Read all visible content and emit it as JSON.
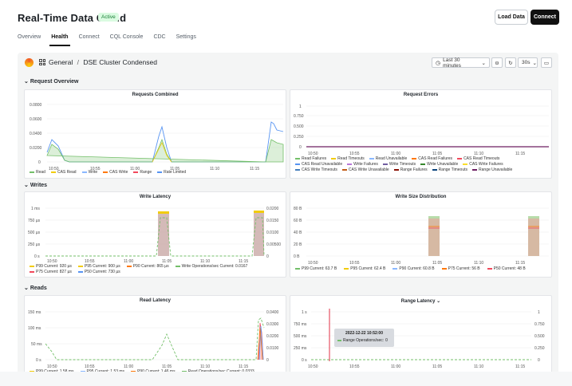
{
  "app": {
    "title": "Real-Time Data Cloud",
    "status": "Active",
    "load_data_label": "Load Data",
    "connect_label": "Connect"
  },
  "tabs": [
    {
      "label": "Overview"
    },
    {
      "label": "Health"
    },
    {
      "label": "Connect"
    },
    {
      "label": "CQL Console"
    },
    {
      "label": "CDC"
    },
    {
      "label": "Settings"
    }
  ],
  "grafana": {
    "breadcrumb_folder": "General",
    "breadcrumb_separator": "/",
    "breadcrumb_dashboard": "DSE Cluster Condensed",
    "time_range": "Last 30 minutes",
    "refresh": "30s",
    "sections": {
      "request_overview": "Request Overview",
      "writes": "Writes",
      "reads": "Reads"
    }
  },
  "icons": {
    "logo": "grafana-logo-icon",
    "dashboards": "grid-icon",
    "clock": "clock-icon",
    "zoom": "zoom-out-icon",
    "refresh": "refresh-icon",
    "tv": "tv-mode-icon"
  },
  "panels": {
    "requests_combined": {
      "title": "Requests Combined",
      "y_ticks": [
        "0.0800",
        "0.0600",
        "0.0400",
        "0.0200",
        "0"
      ],
      "x_ticks": [
        "10:50",
        "10:55",
        "11:00",
        "11:05",
        "11:10",
        "11:15"
      ],
      "legend": [
        {
          "label": "Read",
          "color": "#73bf69"
        },
        {
          "label": "CAS Read",
          "color": "#f2cc0c"
        },
        {
          "label": "Write",
          "color": "#8ab8ff"
        },
        {
          "label": "CAS Write",
          "color": "#ff780a"
        },
        {
          "label": "Range",
          "color": "#f2495c"
        },
        {
          "label": "Rate Limited",
          "color": "#5794f2"
        }
      ]
    },
    "request_errors": {
      "title": "Request Errors",
      "y_ticks": [
        "1",
        "0.750",
        "0.500",
        "0.250",
        "0"
      ],
      "x_ticks": [
        "10:50",
        "10:55",
        "11:00",
        "11:05",
        "11:10",
        "11:15"
      ],
      "legend": [
        {
          "label": "Read Failures",
          "color": "#73bf69"
        },
        {
          "label": "Read Timeouts",
          "color": "#f2cc0c"
        },
        {
          "label": "Read Unavailable",
          "color": "#8ab8ff"
        },
        {
          "label": "CAS Read Failures",
          "color": "#ff780a"
        },
        {
          "label": "CAS Read Timeouts",
          "color": "#f2495c"
        },
        {
          "label": "CAS Read Unavailable",
          "color": "#5794f2"
        },
        {
          "label": "Write Failures",
          "color": "#b877d9"
        },
        {
          "label": "Write Timeouts",
          "color": "#705da0"
        },
        {
          "label": "Write Unavailable",
          "color": "#37872d"
        },
        {
          "label": "CAS Write Failures",
          "color": "#fade2a"
        },
        {
          "label": "CAS Write Timeouts",
          "color": "#447ebc"
        },
        {
          "label": "CAS Write Unavailable",
          "color": "#c15c17"
        },
        {
          "label": "Range Failures",
          "color": "#890f02"
        },
        {
          "label": "Range Timeouts",
          "color": "#0a437c"
        },
        {
          "label": "Range Unavailable",
          "color": "#6d1f62"
        }
      ]
    },
    "write_latency": {
      "title": "Write Latency",
      "y_left_ticks": [
        "1 ms",
        "750 µs",
        "500 µs",
        "250 µs",
        "0 s"
      ],
      "y_right_ticks": [
        "0.0200",
        "0.0150",
        "0.0100",
        "0.00500",
        "0"
      ],
      "x_ticks": [
        "10:50",
        "10:55",
        "11:00",
        "11:05",
        "11:10",
        "11:15"
      ],
      "legend": [
        {
          "label": "P99  Current: 920 µs",
          "color": "#f2cc0c"
        },
        {
          "label": "P95  Current: 900 µs",
          "color": "#f2cc0c"
        },
        {
          "label": "P90  Current: 865 µs",
          "color": "#ff780a"
        },
        {
          "label": "Write Operations/sec  Current: 0.0167",
          "color": "#73bf69"
        },
        {
          "label": "P75  Current: 827 µs",
          "color": "#f2495c"
        },
        {
          "label": "P50  Current: 730 µs",
          "color": "#5794f2"
        }
      ]
    },
    "write_size": {
      "title": "Write Size Distribution",
      "y_ticks": [
        "80 B",
        "60 B",
        "40 B",
        "20 B",
        "0 B"
      ],
      "x_ticks": [
        "10:50",
        "10:55",
        "11:00",
        "11:05",
        "11:10",
        "11:15"
      ],
      "legend": [
        {
          "label": "P99  Current: 63.7 B",
          "color": "#73bf69"
        },
        {
          "label": "P95  Current: 62.4 B",
          "color": "#f2cc0c"
        },
        {
          "label": "P90  Current: 60.8 B",
          "color": "#8ab8ff"
        },
        {
          "label": "P75  Current: 56 B",
          "color": "#ff780a"
        },
        {
          "label": "P50  Current: 48 B",
          "color": "#f2495c"
        }
      ]
    },
    "read_latency": {
      "title": "Read Latency",
      "y_left_ticks": [
        "150 ms",
        "100 ms",
        "50 ms",
        "0 s"
      ],
      "y_right_ticks": [
        "0.0400",
        "0.0300",
        "0.0200",
        "0.0100",
        "0"
      ],
      "x_ticks": [
        "10:50",
        "10:55",
        "11:00",
        "11:05",
        "11:10",
        "11:15"
      ],
      "legend": [
        {
          "label": "P99  Current: 1.58 ms",
          "color": "#f2cc0c"
        },
        {
          "label": "P95  Current: 1.53 ms",
          "color": "#8ab8ff"
        },
        {
          "label": "P90  Current: 1.46 ms",
          "color": "#ff780a"
        },
        {
          "label": "Read Operations/sec  Current: 0.0333",
          "color": "#73bf69"
        }
      ]
    },
    "range_latency": {
      "title": "Range Latency",
      "y_left_ticks": [
        "1 s",
        "750 ms",
        "500 ms",
        "250 ms",
        "0 s"
      ],
      "y_right_ticks": [
        "1",
        "0.750",
        "0.500",
        "0.250",
        "0"
      ],
      "x_ticks": [
        "10:50",
        "10:55",
        "11:00",
        "11:05",
        "11:10",
        "11:15"
      ],
      "tooltip_time": "2022-12-22 10:52:00",
      "tooltip_series": "Range Operations/sec:",
      "tooltip_value": "0"
    }
  },
  "chart_data": [
    {
      "type": "line",
      "title": "Requests Combined",
      "x": [
        "10:50",
        "10:55",
        "11:00",
        "11:05",
        "11:10",
        "11:15"
      ],
      "series": [
        {
          "name": "Read",
          "values": [
            0.02,
            0,
            0,
            0.03,
            0,
            0.02
          ]
        },
        {
          "name": "Write",
          "values": [
            0.02,
            0,
            0,
            0.05,
            0,
            0.06
          ]
        }
      ],
      "ylim": [
        0,
        0.08
      ]
    }
  ]
}
